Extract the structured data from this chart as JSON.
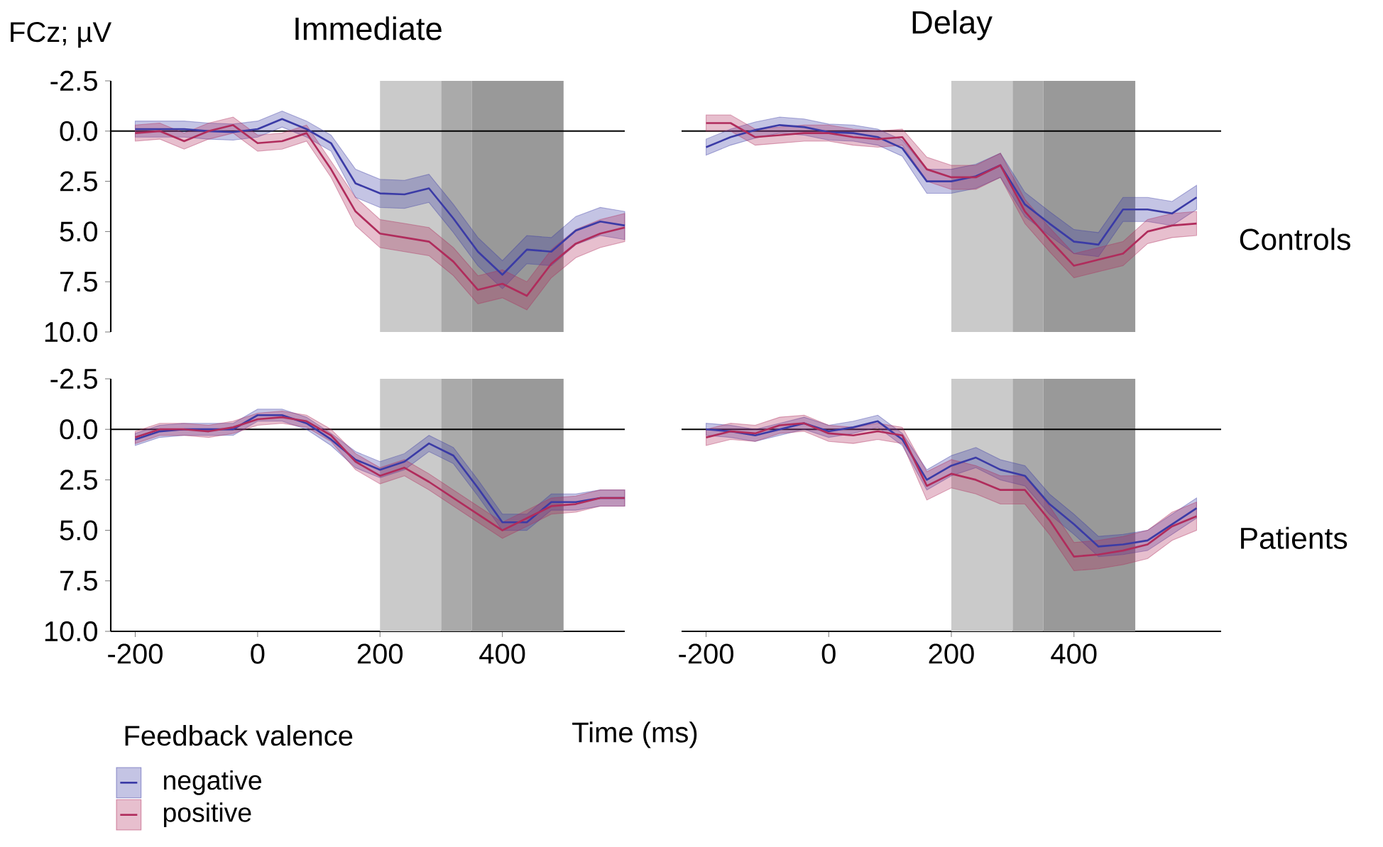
{
  "chart_data": [
    {
      "type": "line",
      "title": "Immediate",
      "ylabel": "FCz; µV",
      "tick_labels": "y",
      "x": [
        -200,
        -160,
        -120,
        -80,
        -40,
        0,
        40,
        80,
        120,
        160,
        200,
        240,
        280,
        320,
        360,
        400,
        440,
        480,
        520,
        560,
        600
      ],
      "xlim": [
        -240,
        600
      ],
      "ylim": [
        10,
        -2.5
      ],
      "yticks": [
        {
          "value": -2.5,
          "label": "-2.5"
        },
        {
          "value": 0,
          "label": "0.0"
        },
        {
          "value": 2.5,
          "label": "2.5"
        },
        {
          "value": 5,
          "label": "5.0"
        },
        {
          "value": 7.5,
          "label": "7.5"
        },
        {
          "value": 10,
          "label": "10.0"
        }
      ],
      "bands": [
        {
          "axis": "x",
          "from": 200,
          "to": 300,
          "color": "#cacaca"
        },
        {
          "axis": "x",
          "from": 300,
          "to": 350,
          "color": "#aaaaaa"
        },
        {
          "axis": "x",
          "from": 350,
          "to": 500,
          "color": "#999999"
        }
      ],
      "ref_lines": [
        {
          "axis": "y",
          "value": 0,
          "color": "#000000"
        }
      ],
      "series": [
        {
          "color": "#3b3ba6",
          "values": [
            -0.1,
            -0.1,
            -0.1,
            0,
            0.05,
            -0.1,
            -0.6,
            -0.1,
            0.6,
            2.6,
            3.1,
            3.15,
            2.85,
            4.35,
            6.0,
            7.15,
            5.9,
            6.0,
            4.95,
            4.5,
            4.7
          ],
          "lower": [
            -0.5,
            -0.5,
            -0.5,
            -0.4,
            -0.35,
            -0.5,
            -1.0,
            -0.5,
            0.2,
            1.9,
            2.4,
            2.45,
            2.15,
            3.65,
            5.3,
            6.45,
            5.2,
            5.3,
            4.25,
            3.8,
            4.0
          ],
          "upper": [
            0.3,
            0.3,
            0.3,
            0.4,
            0.45,
            0.3,
            -0.2,
            0.3,
            1.0,
            3.3,
            3.8,
            3.85,
            3.55,
            5.05,
            6.7,
            7.85,
            6.6,
            6.7,
            5.65,
            5.2,
            5.4
          ]
        },
        {
          "color": "#b02c5c",
          "values": [
            0.1,
            0.0,
            0.5,
            0.0,
            -0.3,
            0.6,
            0.5,
            0.1,
            1.9,
            4.0,
            5.1,
            5.3,
            5.5,
            6.5,
            7.9,
            7.6,
            8.2,
            6.6,
            5.6,
            5.1,
            4.8
          ],
          "lower": [
            -0.3,
            -0.4,
            0.1,
            -0.4,
            -0.7,
            0.2,
            0.1,
            -0.3,
            1.5,
            3.3,
            4.4,
            4.6,
            4.8,
            5.8,
            7.2,
            6.9,
            7.5,
            5.9,
            4.9,
            4.4,
            4.1
          ],
          "upper": [
            0.5,
            0.4,
            0.9,
            0.4,
            0.1,
            1.0,
            0.9,
            0.5,
            2.3,
            4.7,
            5.8,
            6.0,
            6.2,
            7.2,
            8.6,
            8.3,
            8.9,
            7.3,
            6.3,
            5.8,
            5.5
          ]
        }
      ]
    },
    {
      "type": "line",
      "title": "Delay",
      "tick_labels": false,
      "annotations": [
        "Controls"
      ],
      "x": [
        -200,
        -160,
        -120,
        -80,
        -40,
        0,
        40,
        80,
        120,
        160,
        200,
        240,
        280,
        320,
        360,
        400,
        440,
        480,
        520,
        560,
        600
      ],
      "xlim": [
        -240,
        640
      ],
      "ylim": [
        10,
        -2.5
      ],
      "bands": [
        {
          "axis": "x",
          "from": 200,
          "to": 300,
          "color": "#cacaca"
        },
        {
          "axis": "x",
          "from": 300,
          "to": 350,
          "color": "#aaaaaa"
        },
        {
          "axis": "x",
          "from": 350,
          "to": 500,
          "color": "#999999"
        }
      ],
      "ref_lines": [
        {
          "axis": "y",
          "value": 0,
          "color": "#000000"
        }
      ],
      "series": [
        {
          "color": "#3b3ba6",
          "values": [
            0.8,
            0.3,
            -0.05,
            -0.3,
            -0.2,
            0.05,
            0.1,
            0.3,
            0.85,
            2.5,
            2.5,
            2.25,
            1.7,
            3.65,
            4.6,
            5.5,
            5.65,
            3.9,
            3.9,
            4.1,
            3.3
          ],
          "lower": [
            0.4,
            -0.1,
            -0.45,
            -0.7,
            -0.6,
            -0.35,
            -0.3,
            -0.1,
            0.45,
            1.9,
            1.9,
            1.65,
            1.1,
            3.05,
            4.0,
            4.9,
            5.05,
            3.3,
            3.3,
            3.5,
            2.7
          ],
          "upper": [
            1.2,
            0.7,
            0.35,
            0.1,
            0.2,
            0.45,
            0.5,
            0.7,
            1.25,
            3.1,
            3.1,
            2.85,
            2.3,
            4.25,
            5.2,
            6.1,
            6.25,
            4.5,
            4.5,
            4.7,
            3.9
          ]
        },
        {
          "color": "#b02c5c",
          "values": [
            -0.4,
            -0.4,
            0.3,
            0.2,
            0.1,
            0.1,
            0.3,
            0.4,
            0.3,
            1.9,
            2.3,
            2.3,
            1.7,
            4.0,
            5.4,
            6.7,
            6.4,
            6.1,
            5.0,
            4.7,
            4.6
          ],
          "lower": [
            -0.8,
            -0.8,
            -0.1,
            -0.2,
            -0.3,
            -0.3,
            -0.1,
            0.0,
            -0.1,
            1.3,
            1.7,
            1.7,
            1.1,
            3.4,
            4.8,
            6.1,
            5.8,
            5.5,
            4.4,
            4.1,
            4.0
          ],
          "upper": [
            0.0,
            0.0,
            0.7,
            0.6,
            0.5,
            0.5,
            0.7,
            0.8,
            0.7,
            2.5,
            2.9,
            2.9,
            2.3,
            4.6,
            6.0,
            7.3,
            7.0,
            6.7,
            5.6,
            5.3,
            5.2
          ]
        }
      ]
    },
    {
      "type": "line",
      "xlabel": "Time (ms)",
      "legend": "bottom left",
      "legend_title": "Feedback valence",
      "x": [
        -200,
        -160,
        -120,
        -80,
        -40,
        0,
        40,
        80,
        120,
        160,
        200,
        240,
        280,
        320,
        360,
        400,
        440,
        480,
        520,
        560,
        600
      ],
      "xlim": [
        -240,
        600
      ],
      "ylim": [
        10,
        -2.5
      ],
      "xticks": [
        -200,
        0,
        200,
        400
      ],
      "yticks": [
        {
          "value": -2.5,
          "label": "-2.5"
        },
        {
          "value": 0,
          "label": "0.0"
        },
        {
          "value": 2.5,
          "label": "2.5"
        },
        {
          "value": 5,
          "label": "5.0"
        },
        {
          "value": 7.5,
          "label": "7.5"
        },
        {
          "value": 10,
          "label": "10.0"
        }
      ],
      "bands": [
        {
          "axis": "x",
          "from": 200,
          "to": 300,
          "color": "#cacaca"
        },
        {
          "axis": "x",
          "from": 300,
          "to": 350,
          "color": "#aaaaaa"
        },
        {
          "axis": "x",
          "from": 350,
          "to": 500,
          "color": "#999999"
        }
      ],
      "ref_lines": [
        {
          "axis": "y",
          "value": 0,
          "color": "#000000"
        }
      ],
      "series": [
        {
          "name": "negative",
          "color": "#3b3ba6",
          "values": [
            0.5,
            0.1,
            0.0,
            0.0,
            0.0,
            -0.7,
            -0.7,
            -0.3,
            0.5,
            1.5,
            2.0,
            1.6,
            0.7,
            1.3,
            2.9,
            4.6,
            4.6,
            3.6,
            3.6,
            3.4,
            3.4
          ],
          "lower": [
            0.2,
            -0.2,
            -0.3,
            -0.3,
            -0.3,
            -1.0,
            -1.0,
            -0.6,
            0.2,
            1.1,
            1.6,
            1.2,
            0.3,
            0.9,
            2.5,
            4.2,
            4.2,
            3.2,
            3.2,
            3.0,
            3.0
          ],
          "upper": [
            0.8,
            0.4,
            0.3,
            0.3,
            0.3,
            -0.4,
            -0.4,
            0.0,
            0.8,
            1.9,
            2.4,
            2.0,
            1.1,
            1.7,
            3.3,
            5.0,
            5.0,
            4.0,
            4.0,
            3.8,
            3.8
          ]
        },
        {
          "name": "positive",
          "color": "#b02c5c",
          "values": [
            0.4,
            0.0,
            0.0,
            0.1,
            -0.1,
            -0.5,
            -0.6,
            -0.4,
            0.3,
            1.6,
            2.3,
            1.9,
            2.6,
            3.4,
            4.2,
            5.0,
            4.4,
            3.8,
            3.7,
            3.4,
            3.4
          ],
          "lower": [
            0.1,
            -0.3,
            -0.3,
            -0.2,
            -0.4,
            -0.8,
            -0.9,
            -0.7,
            0.0,
            1.2,
            1.9,
            1.5,
            2.2,
            3.0,
            3.8,
            4.6,
            4.0,
            3.4,
            3.3,
            3.0,
            3.0
          ],
          "upper": [
            0.7,
            0.3,
            0.3,
            0.4,
            0.2,
            -0.2,
            -0.3,
            -0.1,
            0.6,
            2.0,
            2.7,
            2.3,
            3.0,
            3.8,
            4.6,
            5.4,
            4.8,
            4.2,
            4.1,
            3.8,
            3.8
          ]
        }
      ]
    },
    {
      "type": "line",
      "tick_labels": "x",
      "annotations": [
        "Patients"
      ],
      "x": [
        -200,
        -160,
        -120,
        -80,
        -40,
        0,
        40,
        80,
        120,
        160,
        200,
        240,
        280,
        320,
        360,
        400,
        440,
        480,
        520,
        560,
        600
      ],
      "xlim": [
        -240,
        640
      ],
      "ylim": [
        10,
        -2.5
      ],
      "xticks": [
        -200,
        0,
        200,
        400
      ],
      "bands": [
        {
          "axis": "x",
          "from": 200,
          "to": 300,
          "color": "#cacaca"
        },
        {
          "axis": "x",
          "from": 300,
          "to": 350,
          "color": "#aaaaaa"
        },
        {
          "axis": "x",
          "from": 350,
          "to": 500,
          "color": "#999999"
        }
      ],
      "ref_lines": [
        {
          "axis": "y",
          "value": 0,
          "color": "#000000"
        }
      ],
      "series": [
        {
          "color": "#3b3ba6",
          "values": [
            0.0,
            0.1,
            0.3,
            0.0,
            -0.3,
            0.1,
            -0.1,
            -0.4,
            0.5,
            2.5,
            1.8,
            1.4,
            2.0,
            2.3,
            3.7,
            4.7,
            5.8,
            5.7,
            5.5,
            4.7,
            3.9
          ],
          "lower": [
            -0.3,
            -0.2,
            0.0,
            -0.3,
            -0.6,
            -0.2,
            -0.4,
            -0.7,
            0.2,
            2.0,
            1.3,
            0.9,
            1.5,
            1.8,
            3.2,
            4.2,
            5.3,
            5.2,
            5.0,
            4.2,
            3.4
          ],
          "upper": [
            0.3,
            0.4,
            0.6,
            0.3,
            0.0,
            0.4,
            0.2,
            -0.1,
            0.8,
            3.0,
            2.3,
            1.9,
            2.5,
            2.8,
            4.2,
            5.2,
            6.3,
            6.2,
            6.0,
            5.2,
            4.4
          ]
        },
        {
          "color": "#b02c5c",
          "values": [
            0.4,
            0.1,
            0.2,
            -0.2,
            -0.3,
            0.2,
            0.3,
            0.1,
            0.3,
            2.8,
            2.2,
            2.5,
            3.0,
            3.0,
            4.5,
            6.3,
            6.2,
            6.0,
            5.7,
            4.8,
            4.3
          ],
          "lower": [
            0.0,
            -0.3,
            -0.2,
            -0.6,
            -0.7,
            -0.2,
            -0.1,
            -0.3,
            -0.1,
            2.1,
            1.5,
            1.8,
            2.3,
            2.3,
            3.8,
            5.6,
            5.5,
            5.3,
            5.0,
            4.1,
            3.6
          ],
          "upper": [
            0.8,
            0.5,
            0.6,
            0.2,
            0.1,
            0.6,
            0.7,
            0.5,
            0.7,
            3.5,
            2.9,
            3.2,
            3.7,
            3.7,
            5.2,
            7.0,
            6.9,
            6.7,
            6.4,
            5.5,
            5.0
          ]
        }
      ]
    }
  ]
}
